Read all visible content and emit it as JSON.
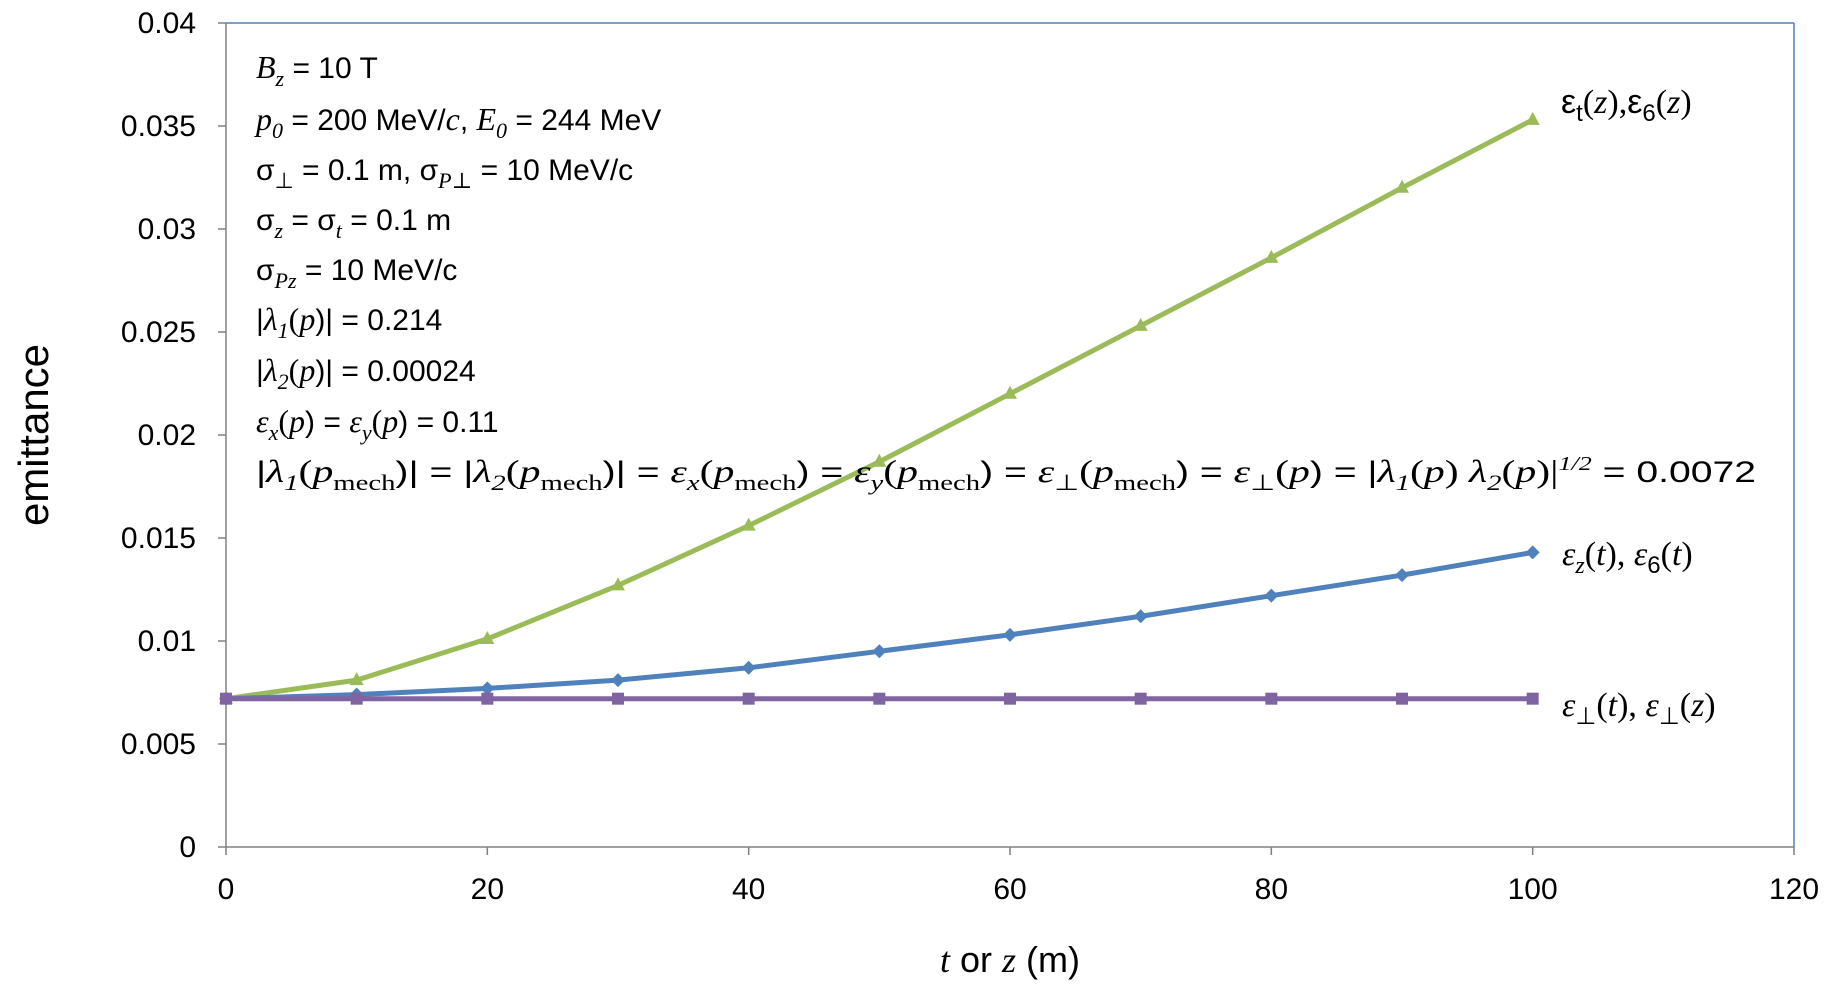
{
  "chart_data": {
    "type": "line",
    "xlabel_parts": [
      "t",
      " or ",
      "z",
      " (m)"
    ],
    "ylabel": "emittance",
    "xlim": [
      0,
      120
    ],
    "ylim": [
      0,
      0.04
    ],
    "x_ticks": [
      0,
      20,
      40,
      60,
      80,
      100,
      120
    ],
    "y_ticks": [
      0,
      0.005,
      0.01,
      0.015,
      0.02,
      0.025,
      0.03,
      0.035,
      0.04
    ],
    "x_tick_labels": [
      "0",
      "20",
      "40",
      "60",
      "80",
      "100",
      "120"
    ],
    "y_tick_labels": [
      "0",
      "0.005",
      "0.01",
      "0.015",
      "0.02",
      "0.025",
      "0.03",
      "0.035",
      "0.04"
    ],
    "grid": false,
    "legend": "none",
    "series": [
      {
        "key": "transverse-time-and-z",
        "color": "#9BBB59",
        "marker": "triangle",
        "x": [
          0,
          10,
          20,
          30,
          40,
          50,
          60,
          70,
          80,
          90,
          100
        ],
        "y": [
          0.0072,
          0.0081,
          0.0101,
          0.0127,
          0.0156,
          0.0187,
          0.022,
          0.0253,
          0.0286,
          0.032,
          0.0353
        ]
      },
      {
        "key": "longitudinal-time",
        "color": "#4F81BD",
        "marker": "diamond",
        "x": [
          0,
          10,
          20,
          30,
          40,
          50,
          60,
          70,
          80,
          90,
          100
        ],
        "y": [
          0.0072,
          0.0074,
          0.0077,
          0.0081,
          0.0087,
          0.0095,
          0.0103,
          0.0112,
          0.0122,
          0.0132,
          0.0143
        ]
      },
      {
        "key": "perpendicular",
        "color": "#8064A2",
        "marker": "square",
        "x": [
          0,
          10,
          20,
          30,
          40,
          50,
          60,
          70,
          80,
          90,
          100
        ],
        "y": [
          0.0072,
          0.0072,
          0.0072,
          0.0072,
          0.0072,
          0.0072,
          0.0072,
          0.0072,
          0.0072,
          0.0072,
          0.0072
        ]
      }
    ],
    "series_labels": {
      "top": {
        "eps": "ε",
        "sub1": "t",
        "p1": "(",
        "v1": "z",
        "p2": "),",
        "eps2": "ε",
        "sub2": "6",
        "p3": "(",
        "v2": "z",
        "p4": ")"
      },
      "mid": {
        "eps": "ε",
        "sub1": "z",
        "p1": "(",
        "v1": "t",
        "p2": "), ",
        "eps2": "ε",
        "sub2": "6",
        "p3": "(",
        "v2": "t",
        "p4": ")"
      },
      "bot": {
        "eps": "ε",
        "sub1": "⊥",
        "p1": "(",
        "v1": "t",
        "p2": "), ",
        "eps2": "ε",
        "sub2": "⊥",
        "p3": "(",
        "v2": "z",
        "p4": ")"
      }
    },
    "annotations": {
      "line1": {
        "a": "B",
        "b": "z",
        "c": " = 10 T"
      },
      "line2": {
        "a": "p",
        "b": "0",
        "c": " = 200 MeV/",
        "d": "c",
        "e": ", ",
        "f": "E",
        "g": "0",
        "h": " = 244 MeV"
      },
      "line3": {
        "a": "σ",
        "b": "⊥",
        "c": " = 0.1 m, σ",
        "d": "P⊥",
        "e": " = 10 MeV/c"
      },
      "line4": {
        "a": "σ",
        "b": "z",
        "c": " = σ",
        "d": "t",
        "e": " = 0.1 m"
      },
      "line5": {
        "a": "σ",
        "b": "Pz",
        "c": " = 10 MeV/c"
      },
      "line6": {
        "a": "|",
        "b": "λ",
        "c": "1",
        "d": "(",
        "e": "p",
        "f": ")| = 0.214"
      },
      "line7": {
        "a": "|",
        "b": "λ",
        "c": "2",
        "d": "(",
        "e": "p",
        "f": ")| = 0.00024"
      },
      "line8": {
        "a": "ε",
        "b": "x",
        "c": "(",
        "d": "p",
        "e": ") = ",
        "f": "ε",
        "g": "y",
        "h": "(",
        "i": "p",
        "j": ") = 0.11"
      },
      "line9": {
        "s01": "|",
        "s02": "λ",
        "s03": "1",
        "s04": "(",
        "s05": "p",
        "s06": "mech",
        "s07": ")| = ",
        "s08": "|",
        "s09": "λ",
        "s10": "2",
        "s11": "(",
        "s12": "p",
        "s13": "mech",
        "s14": ")| = ",
        "s15": "ε",
        "s16": "x",
        "s17": "(",
        "s18": "p",
        "s19": "mech",
        "s20": ") = ",
        "s21": "ε",
        "s22": "y",
        "s23": "(",
        "s24": "p",
        "s25": "mech",
        "s26": ") = ",
        "s27": "ε",
        "s28": "⊥",
        "s29": "(",
        "s30": "p",
        "s31": "mech",
        "s32": ") = ",
        "s33": "ε",
        "s34": "⊥",
        "s35": "(",
        "s36": "p",
        "s37": ") = ",
        "s38": "|",
        "s39": "λ",
        "s40": "1",
        "s41": "(",
        "s42": "p",
        "s43": ") ",
        "s44": "λ",
        "s45": "2",
        "s46": "(",
        "s47": "p",
        "s48": ")|",
        "s49": "1/2",
        "s50": "  = 0.0072"
      }
    }
  }
}
